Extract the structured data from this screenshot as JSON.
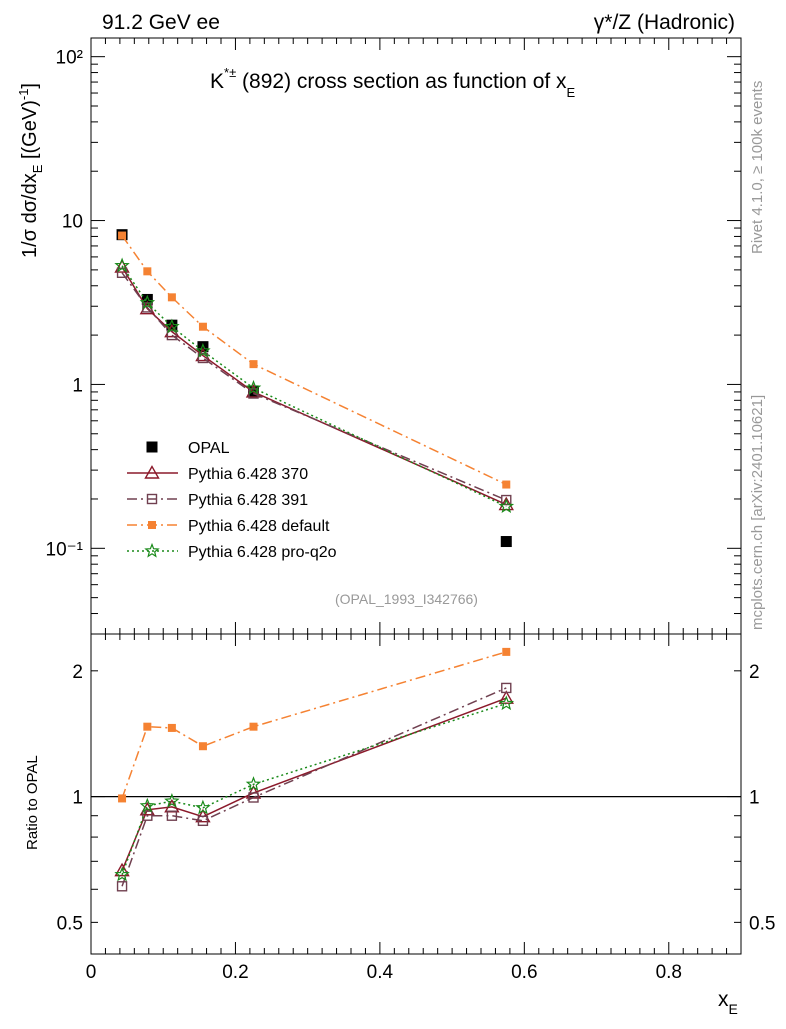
{
  "header": {
    "left": "91.2 GeV ee",
    "right": "γ*/Z (Hadronic)"
  },
  "side": {
    "rivet": "Rivet 4.1.0, ≥ 100k events",
    "mcplots": "mcplots.cern.ch [arXiv:2401.10621]"
  },
  "chart_data": [
    {
      "type": "line",
      "title": "K*± (892) cross section as function of xE",
      "ylabel": "1/σ dσ/dxE [(GeV)-1]",
      "xlabel": "xE",
      "yscale": "log",
      "ylim": [
        0.03,
        130
      ],
      "xlim": [
        0,
        0.9
      ],
      "xticks": [
        0,
        0.2,
        0.4,
        0.6,
        0.8
      ],
      "yticks": [
        {
          "v": 0.1,
          "label": "10⁻¹"
        },
        {
          "v": 1,
          "label": "1"
        },
        {
          "v": 10,
          "label": "10"
        },
        {
          "v": 100,
          "label": "10²"
        }
      ],
      "annotation": "(OPAL_1993_I342766)",
      "x": [
        0.043,
        0.078,
        0.112,
        0.155,
        0.225,
        0.575
      ],
      "series": [
        {
          "name": "OPAL",
          "values": [
            8.2,
            3.3,
            2.3,
            1.7,
            0.9,
            0.11
          ],
          "color": "#000000",
          "marker": "square-filled",
          "line": "none"
        },
        {
          "name": "Pythia 6.428 370",
          "values": [
            5.2,
            2.9,
            2.1,
            1.5,
            0.9,
            0.185
          ],
          "color": "#8b1a2b",
          "marker": "triangle-open",
          "line": "solid"
        },
        {
          "name": "Pythia 6.428 391",
          "values": [
            4.8,
            2.95,
            2.0,
            1.45,
            0.88,
            0.197
          ],
          "color": "#704050",
          "marker": "square-open",
          "line": "dashdot"
        },
        {
          "name": "Pythia 6.428 default",
          "values": [
            8.1,
            4.9,
            3.4,
            2.25,
            1.33,
            0.245
          ],
          "color": "#f58232",
          "marker": "square-filled-small",
          "line": "dashdot"
        },
        {
          "name": "Pythia 6.428 pro-q2o",
          "values": [
            5.3,
            3.15,
            2.25,
            1.6,
            0.95,
            0.18
          ],
          "color": "#1a8a1a",
          "marker": "star",
          "line": "dotted"
        }
      ]
    },
    {
      "type": "line",
      "ylabel": "Ratio to OPAL",
      "xlabel": "xE",
      "yscale": "log",
      "ylim": [
        0.42,
        2.45
      ],
      "xlim": [
        0,
        0.9
      ],
      "xticks": [
        0,
        0.2,
        0.4,
        0.6,
        0.8
      ],
      "xticklabels": [
        "0",
        "0.2",
        "0.4",
        "0.6",
        "0.8"
      ],
      "yticks": [
        {
          "v": 0.5,
          "label": "0.5"
        },
        {
          "v": 1,
          "label": "1"
        },
        {
          "v": 2,
          "label": "2"
        }
      ],
      "reference": 1,
      "x": [
        0.043,
        0.078,
        0.112,
        0.155,
        0.225,
        0.575
      ],
      "series": [
        {
          "name": "Pythia 6.428 370",
          "values": [
            0.665,
            0.93,
            0.945,
            0.895,
            1.02,
            1.72
          ],
          "color": "#8b1a2b",
          "marker": "triangle-open",
          "line": "solid"
        },
        {
          "name": "Pythia 6.428 391",
          "values": [
            0.61,
            0.9,
            0.9,
            0.875,
            0.995,
            1.82
          ],
          "color": "#704050",
          "marker": "square-open",
          "line": "dashdot"
        },
        {
          "name": "Pythia 6.428 default",
          "values": [
            0.99,
            1.47,
            1.46,
            1.32,
            1.47,
            2.22
          ],
          "color": "#f58232",
          "marker": "square-filled-small",
          "line": "dashdot"
        },
        {
          "name": "Pythia 6.428 pro-q2o",
          "values": [
            0.65,
            0.95,
            0.975,
            0.94,
            1.07,
            1.67
          ],
          "color": "#1a8a1a",
          "marker": "star",
          "line": "dotted"
        }
      ]
    }
  ]
}
